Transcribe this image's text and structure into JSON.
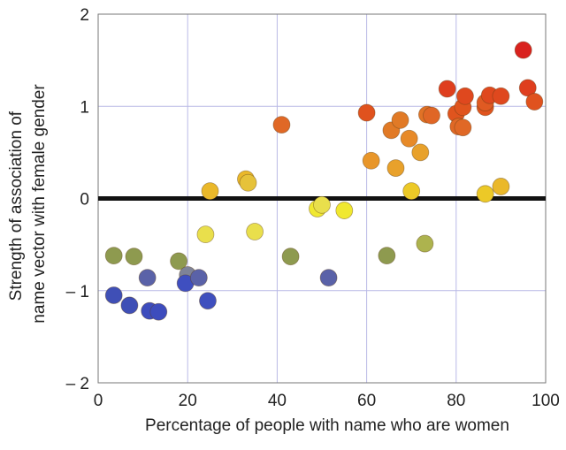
{
  "chart_data": {
    "type": "scatter",
    "title": "",
    "xlabel": "Percentage of people with name who are women",
    "ylabel_lines": [
      "Strength of association of",
      "name vector with female gender"
    ],
    "xlim": [
      0,
      100
    ],
    "ylim": [
      -2,
      2
    ],
    "x_ticks": [
      0,
      20,
      40,
      60,
      80,
      100
    ],
    "x_tick_labels": [
      "0",
      "20",
      "40",
      "60",
      "80",
      "100"
    ],
    "y_ticks": [
      -2,
      -1,
      0,
      1,
      2
    ],
    "y_tick_labels": [
      "– 2",
      "– 1",
      "0",
      "1",
      "2"
    ],
    "grid": true,
    "zero_line": true,
    "colors": {
      "grid": "#b9b9e6",
      "zero_line": "#111111",
      "frame": "#777777"
    },
    "points": [
      {
        "x": 3.5,
        "y": -0.62,
        "color": "#8e9a4f"
      },
      {
        "x": 8,
        "y": -0.63,
        "color": "#8e9a4f"
      },
      {
        "x": 3.5,
        "y": -1.05,
        "color": "#3f4fb6"
      },
      {
        "x": 7,
        "y": -1.16,
        "color": "#3f4fb6"
      },
      {
        "x": 11,
        "y": -0.86,
        "color": "#5a62a8"
      },
      {
        "x": 11.5,
        "y": -1.22,
        "color": "#3d4cbd"
      },
      {
        "x": 13.5,
        "y": -1.23,
        "color": "#3d4cbd"
      },
      {
        "x": 18,
        "y": -0.68,
        "color": "#8e9a4f"
      },
      {
        "x": 20,
        "y": -0.83,
        "color": "#7e8398"
      },
      {
        "x": 19.5,
        "y": -0.92,
        "color": "#3f4fc0"
      },
      {
        "x": 22.5,
        "y": -0.86,
        "color": "#5a62a8"
      },
      {
        "x": 24.5,
        "y": -1.11,
        "color": "#3f4fbe"
      },
      {
        "x": 24,
        "y": -0.39,
        "color": "#e9df4c"
      },
      {
        "x": 25,
        "y": 0.08,
        "color": "#eab82a"
      },
      {
        "x": 33,
        "y": 0.21,
        "color": "#eab82a"
      },
      {
        "x": 33.5,
        "y": 0.17,
        "color": "#e6c23a"
      },
      {
        "x": 35,
        "y": -0.36,
        "color": "#e9df4c"
      },
      {
        "x": 41,
        "y": 0.8,
        "color": "#e06826"
      },
      {
        "x": 43,
        "y": -0.63,
        "color": "#8e9a4f"
      },
      {
        "x": 49,
        "y": -0.11,
        "color": "#f0e830"
      },
      {
        "x": 50,
        "y": -0.07,
        "color": "#e9df4c"
      },
      {
        "x": 51.5,
        "y": -0.86,
        "color": "#5a62a8"
      },
      {
        "x": 55,
        "y": -0.13,
        "color": "#f0e830"
      },
      {
        "x": 60,
        "y": 0.93,
        "color": "#e0521e"
      },
      {
        "x": 61,
        "y": 0.41,
        "color": "#e8962a"
      },
      {
        "x": 64.5,
        "y": -0.62,
        "color": "#8e9a4f"
      },
      {
        "x": 65.5,
        "y": 0.74,
        "color": "#e17a26"
      },
      {
        "x": 66.5,
        "y": 0.33,
        "color": "#e8a12b"
      },
      {
        "x": 67.5,
        "y": 0.85,
        "color": "#e17a26"
      },
      {
        "x": 69.5,
        "y": 0.65,
        "color": "#e78a28"
      },
      {
        "x": 70,
        "y": 0.08,
        "color": "#ecc927"
      },
      {
        "x": 72,
        "y": 0.5,
        "color": "#e8a12b"
      },
      {
        "x": 73,
        "y": -0.49,
        "color": "#adb34e"
      },
      {
        "x": 73.5,
        "y": 0.91,
        "color": "#e17226"
      },
      {
        "x": 74.5,
        "y": 0.9,
        "color": "#e06626"
      },
      {
        "x": 78,
        "y": 1.19,
        "color": "#df3e1e"
      },
      {
        "x": 80,
        "y": 0.92,
        "color": "#e0541e"
      },
      {
        "x": 80.5,
        "y": 0.78,
        "color": "#e06826"
      },
      {
        "x": 81.5,
        "y": 0.77,
        "color": "#e06826"
      },
      {
        "x": 81.5,
        "y": 0.99,
        "color": "#e0541e"
      },
      {
        "x": 82,
        "y": 1.11,
        "color": "#df481e"
      },
      {
        "x": 86.5,
        "y": 0.99,
        "color": "#e0541e"
      },
      {
        "x": 86.5,
        "y": 1.04,
        "color": "#e05a22"
      },
      {
        "x": 86.5,
        "y": 0.05,
        "color": "#ecc927"
      },
      {
        "x": 87.5,
        "y": 1.12,
        "color": "#df481e"
      },
      {
        "x": 90,
        "y": 1.11,
        "color": "#df481e"
      },
      {
        "x": 90,
        "y": 0.13,
        "color": "#eab82a"
      },
      {
        "x": 95,
        "y": 1.61,
        "color": "#d9221e"
      },
      {
        "x": 96,
        "y": 1.2,
        "color": "#df3e1e"
      },
      {
        "x": 97.5,
        "y": 1.05,
        "color": "#e0521e"
      }
    ]
  }
}
